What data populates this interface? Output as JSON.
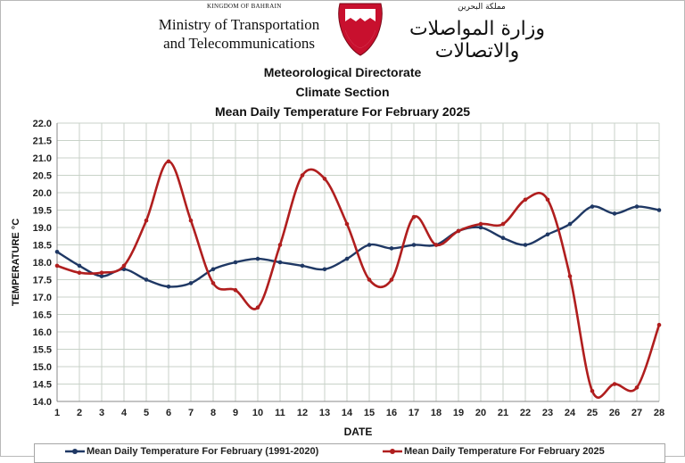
{
  "header": {
    "kingdom": "KINGDOM OF BAHRAIN",
    "ministry_line1": "Ministry of Transportation",
    "ministry_line2": "and Telecommunications",
    "arabic_small": "مملكة البحرين",
    "arabic_name": "وزارة المواصلات والاتصالات",
    "emblem": "bahrain-emblem-icon"
  },
  "titles": {
    "line1": "Meteorological Directorate",
    "line2": "Climate Section",
    "line3": "Mean Daily Temperature For February 2025"
  },
  "colors": {
    "series_normal": "#1f3864",
    "series_2025": "#b01e1e",
    "grid": "#c8d2c8",
    "emblem_red": "#c8102e"
  },
  "chart_data": {
    "type": "line",
    "title": "Mean Daily Temperature For February 2025",
    "xlabel": "DATE",
    "ylabel": "TEMPERATURE °C",
    "ylim": [
      14.0,
      22.0
    ],
    "y_ticks": [
      "14.0",
      "14.5",
      "15.0",
      "15.5",
      "16.0",
      "16.5",
      "17.0",
      "17.5",
      "18.0",
      "18.5",
      "19.0",
      "19.5",
      "20.0",
      "20.5",
      "21.0",
      "21.5",
      "22.0"
    ],
    "x": [
      1,
      2,
      3,
      4,
      5,
      6,
      7,
      8,
      9,
      10,
      11,
      12,
      13,
      14,
      15,
      16,
      17,
      18,
      19,
      20,
      21,
      22,
      23,
      24,
      25,
      26,
      27,
      28
    ],
    "grid": true,
    "legend_position": "bottom",
    "series": [
      {
        "name": "Mean Daily Temperature For February (1991-2020)",
        "values": [
          18.3,
          17.9,
          17.6,
          17.8,
          17.5,
          17.3,
          17.4,
          17.8,
          18.0,
          18.1,
          18.0,
          17.9,
          17.8,
          18.1,
          18.5,
          18.4,
          18.5,
          18.5,
          18.9,
          19.0,
          18.7,
          18.5,
          18.8,
          19.1,
          19.6,
          19.4,
          19.6,
          19.5
        ]
      },
      {
        "name": "Mean Daily Temperature For February 2025",
        "values": [
          17.9,
          17.7,
          17.7,
          17.9,
          19.2,
          20.9,
          19.2,
          17.4,
          17.2,
          16.7,
          18.5,
          20.5,
          20.4,
          19.1,
          17.5,
          17.5,
          19.3,
          18.5,
          18.9,
          19.1,
          19.1,
          19.8,
          19.8,
          17.6,
          14.3,
          14.5,
          14.4,
          16.2
        ]
      }
    ]
  }
}
